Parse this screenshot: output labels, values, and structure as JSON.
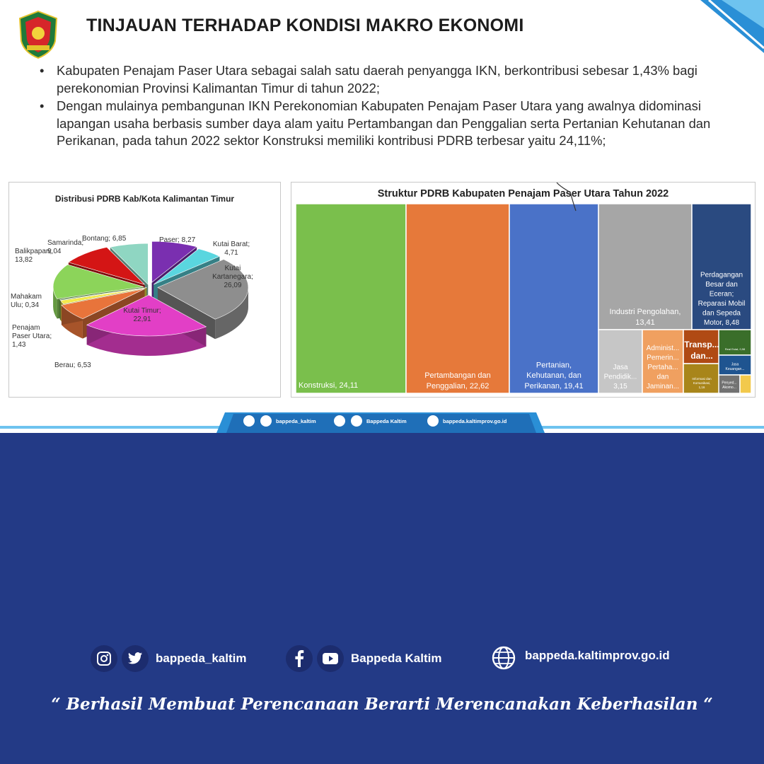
{
  "slide": {
    "title": "TINJAUAN TERHADAP KONDISI MAKRO EKONOMI",
    "bullets": [
      {
        "symbol": "•",
        "text": "Kabupaten Penajam Paser Utara sebagai salah satu daerah penyangga IKN, berkontribusi sebesar 1,43% bagi perekonomian Provinsi Kalimantan Timur di tahun 2022;"
      },
      {
        "symbol": "•",
        "text": "Dengan mulainya pembangunan IKN Perekonomian Kabupaten Penajam Paser Utara  yang awalnya didominasi lapangan usaha berbasis sumber daya alam yaitu Pertambangan dan Penggalian serta Pertanian Kehutanan dan Perikanan, pada tahun 2022 sektor Konstruksi memiliki kontribusi PDRB terbesar yaitu 24,11%;"
      }
    ]
  },
  "chart_data": [
    {
      "type": "pie",
      "title": "Distribusi PDRB Kab/Kota Kalimantan Timur",
      "slices": [
        {
          "label": "Paser",
          "value": 8.27,
          "text": "Paser; 8,27",
          "color": "#7a2fb0"
        },
        {
          "label": "Kutai Barat",
          "value": 4.71,
          "text": "Kutai Barat; 4,71",
          "color": "#5ad6df"
        },
        {
          "label": "Kutai Kartanegara",
          "value": 26.09,
          "text": "Kutai Kartanegara; 26,09",
          "color": "#8e8e8e"
        },
        {
          "label": "Kutai Timur",
          "value": 22.91,
          "text": "Kutai Timur; 22,91",
          "color": "#e23fc6"
        },
        {
          "label": "Berau",
          "value": 6.53,
          "text": "Berau; 6,53",
          "color": "#e8743b"
        },
        {
          "label": "Penajam Paser Utara",
          "value": 1.43,
          "text": "Penajam Paser Utara; 1,43",
          "color": "#f3e94a"
        },
        {
          "label": "Mahakam Ulu",
          "value": 0.34,
          "text": "Mahakam Ulu; 0,34",
          "color": "#3a6a3a"
        },
        {
          "label": "Balikpapan",
          "value": 13.82,
          "text": "Balikpapan; 13,82",
          "color": "#8cd45a"
        },
        {
          "label": "Samarinda",
          "value": 9.04,
          "text": "Samarinda; 9,04",
          "color": "#d41515"
        },
        {
          "label": "Bontang",
          "value": 6.85,
          "text": "Bontang; 6,85",
          "color": "#8fd6c2"
        }
      ]
    },
    {
      "type": "treemap",
      "title": "Struktur PDRB Kabupaten Penajam Paser Utara Tahun 2022",
      "items": [
        {
          "label": "Konstruksi",
          "value": 24.11,
          "text": "Konstruksi, 24,11",
          "color": "#7abf4c"
        },
        {
          "label": "Pertambangan dan Penggalian",
          "value": 22.62,
          "text": "Pertambangan dan Penggalian, 22,62",
          "color": "#e6793a"
        },
        {
          "label": "Pertanian, Kehutanan, dan Perikanan",
          "value": 19.41,
          "text": "Pertanian, Kehutanan, dan Perikanan, 19,41",
          "color": "#4a72c8"
        },
        {
          "label": "Industri Pengolahan",
          "value": 13.41,
          "text": "Industri Pengolahan, 13,41",
          "color": "#a6a6a6"
        },
        {
          "label": "Perdagangan Besar dan Eceran; Reparasi Mobil dan Sepeda Motor",
          "value": 8.48,
          "text": "Perdagangan Besar dan Eceran; Reparasi Mobil dan Sepeda Motor, 8,48",
          "color": "#2a4a80"
        },
        {
          "label": "Jasa Pendidikan",
          "value": 3.15,
          "text": "Jasa Pendidik... 3,15",
          "color": "#c6c6c6"
        },
        {
          "label": "Administrasi Pemerintahan, Pertahanan dan Jaminan Sosial",
          "text": "Administ... Pemerin... Pertaha... dan Jaminan...",
          "color": "#f0a060"
        },
        {
          "label": "Transportasi dan Pergudangan",
          "text": "Transp... dan...",
          "color": "#b04a14"
        },
        {
          "label": "Real Estat",
          "text": "Real Estat, 0,98",
          "color": "#3a6e2a"
        },
        {
          "label": "Informasi dan Komunikasi",
          "text": "Informasi dan Komunikasi, 1,16",
          "color": "#a8851a"
        },
        {
          "label": "Jasa Keuangan",
          "text": "Jasa Keuangan...",
          "color": "#1f5490"
        },
        {
          "label": "Penyediaan Akomodasi",
          "text": "Penyed... Akomo...",
          "color": "#727272"
        },
        {
          "label": "Lainnya",
          "text": "",
          "color": "#f2c94c"
        }
      ]
    }
  ],
  "slide_footer": {
    "handle": "bappeda_kaltim",
    "page_name": "Bappeda Kaltim",
    "website": "bappeda.kaltimprov.go.id"
  },
  "bottom": {
    "handle": "bappeda_kaltim",
    "page_name": "Bappeda Kaltim",
    "website": "bappeda.kaltimprov.go.id",
    "tagline": "“ Berhasil  Membuat Perencanaan Berarti Merencanakan Keberhasilan “"
  },
  "icons": [
    "instagram-icon",
    "twitter-icon",
    "facebook-icon",
    "youtube-icon",
    "globe-icon"
  ],
  "colors": {
    "background": "#233a86",
    "slide_bg": "#ffffff",
    "accent": "#2a8fd6"
  }
}
